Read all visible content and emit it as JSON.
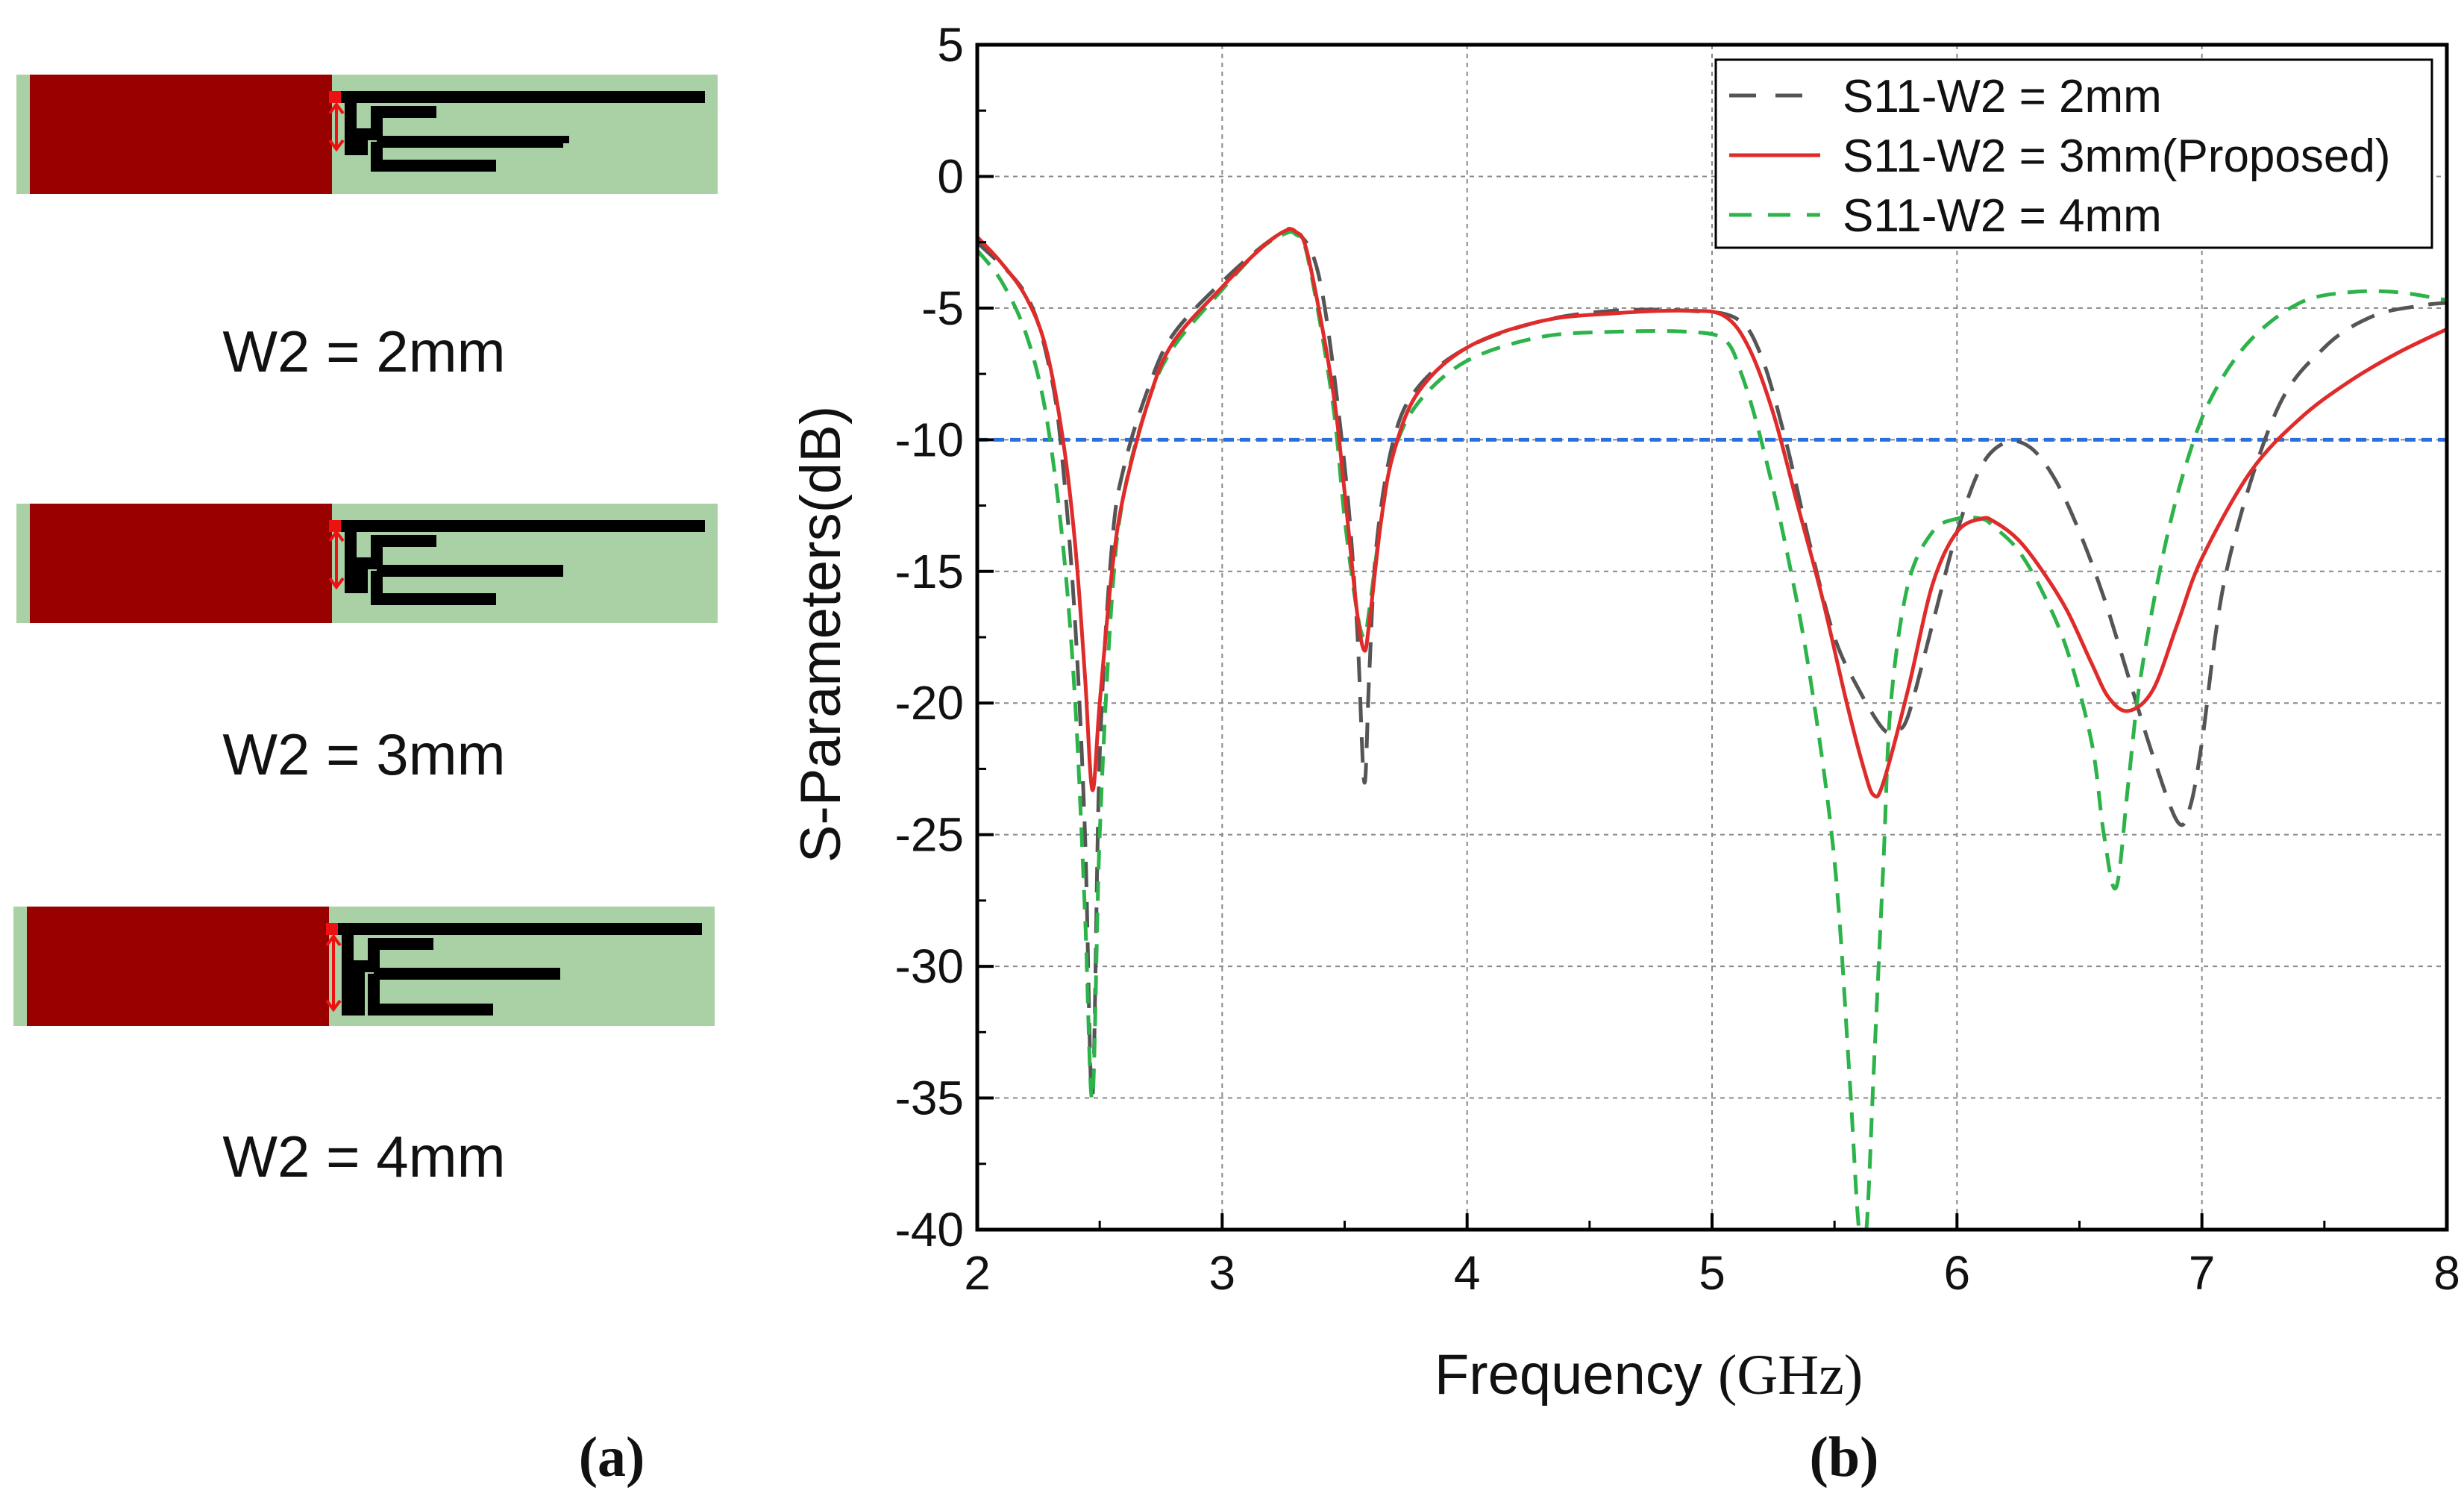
{
  "panel_a": {
    "captions": [
      "W2 = 2mm",
      "W2 = 3mm",
      "W2 = 4mm"
    ],
    "label": "(a)",
    "colors": {
      "patch": "#990000",
      "substrate": "#a9d1a5",
      "strip": "#000000",
      "feed": "#ee1111"
    }
  },
  "panel_b": {
    "label": "(b)"
  },
  "chart_data": {
    "type": "line",
    "xlabel_main": "Frequency ",
    "xlabel_unit": "(GHz)",
    "ylabel": "S-Parameters(dB)",
    "xlim": [
      2,
      8
    ],
    "ylim": [
      -40,
      5
    ],
    "xticks": [
      2,
      3,
      4,
      5,
      6,
      7,
      8
    ],
    "yticks": [
      5,
      0,
      -5,
      -10,
      -15,
      -20,
      -25,
      -30,
      -35,
      -40
    ],
    "grid": true,
    "legend_position": "top-right",
    "reference_line": {
      "y": -10,
      "color": "#2a6fdb",
      "style": "dashed"
    },
    "series": [
      {
        "name": "S11-W2 = 2mm",
        "color": "#555555",
        "dash": "long",
        "x": [
          2.0,
          2.2,
          2.3,
          2.35,
          2.4,
          2.44,
          2.47,
          2.5,
          2.55,
          2.6,
          2.7,
          2.8,
          3.0,
          3.2,
          3.3,
          3.4,
          3.5,
          3.55,
          3.58,
          3.6,
          3.63,
          3.7,
          3.8,
          4.0,
          4.3,
          4.6,
          4.9,
          5.1,
          5.2,
          5.3,
          5.4,
          5.5,
          5.6,
          5.7,
          5.75,
          5.8,
          5.9,
          6.0,
          6.1,
          6.2,
          6.3,
          6.4,
          6.5,
          6.6,
          6.7,
          6.8,
          6.9,
          6.95,
          7.0,
          7.1,
          7.3,
          7.5,
          7.7,
          7.9,
          8.0
        ],
        "y": [
          -2.5,
          -4.5,
          -7.5,
          -11,
          -17,
          -25,
          -35,
          -22,
          -14,
          -11,
          -8,
          -6,
          -4,
          -2.4,
          -2.1,
          -4,
          -11,
          -17,
          -23,
          -19,
          -14,
          -10,
          -8,
          -6.5,
          -5.5,
          -5.1,
          -5.1,
          -5.4,
          -6.8,
          -10,
          -14,
          -17.5,
          -19.5,
          -21,
          -21,
          -20.5,
          -17,
          -13.5,
          -11,
          -10.1,
          -10.3,
          -11.5,
          -13.5,
          -16,
          -19,
          -22,
          -24.5,
          -24,
          -21.5,
          -15,
          -9,
          -6.5,
          -5.3,
          -4.9,
          -4.8
        ]
      },
      {
        "name": "S11-W2 = 3mm(Proposed)",
        "color": "#e02b2b",
        "dash": "solid",
        "x": [
          2.0,
          2.1,
          2.2,
          2.28,
          2.35,
          2.4,
          2.44,
          2.47,
          2.5,
          2.55,
          2.6,
          2.7,
          2.8,
          3.0,
          3.15,
          3.25,
          3.3,
          3.35,
          3.45,
          3.5,
          3.55,
          3.58,
          3.6,
          3.65,
          3.7,
          3.8,
          4.0,
          4.3,
          4.6,
          4.9,
          5.05,
          5.15,
          5.25,
          5.35,
          5.45,
          5.55,
          5.62,
          5.66,
          5.7,
          5.8,
          5.9,
          6.0,
          6.1,
          6.15,
          6.25,
          6.35,
          6.45,
          6.55,
          6.62,
          6.7,
          6.8,
          6.9,
          7.0,
          7.2,
          7.4,
          7.6,
          7.8,
          8.0
        ],
        "y": [
          -2.3,
          -3.3,
          -4.6,
          -6.5,
          -10,
          -14,
          -19,
          -23.3,
          -20,
          -15,
          -12,
          -8.5,
          -6.3,
          -4.2,
          -2.8,
          -2.1,
          -2.1,
          -3,
          -8,
          -12,
          -16.5,
          -18,
          -17,
          -13,
          -10.5,
          -8.2,
          -6.5,
          -5.5,
          -5.2,
          -5.1,
          -5.3,
          -6.5,
          -9,
          -12.5,
          -16,
          -20,
          -22.5,
          -23.5,
          -23,
          -19.5,
          -15.5,
          -13.5,
          -13,
          -13.1,
          -13.8,
          -15,
          -16.5,
          -18.5,
          -19.8,
          -20.3,
          -19.5,
          -17,
          -14.5,
          -11.2,
          -9.2,
          -7.8,
          -6.7,
          -5.8
        ]
      },
      {
        "name": "S11-W2 = 4mm",
        "color": "#2cb34a",
        "dash": "short",
        "x": [
          2.0,
          2.1,
          2.2,
          2.28,
          2.35,
          2.4,
          2.44,
          2.47,
          2.5,
          2.55,
          2.6,
          2.7,
          2.8,
          3.0,
          3.15,
          3.25,
          3.3,
          3.35,
          3.45,
          3.5,
          3.55,
          3.58,
          3.6,
          3.65,
          3.7,
          3.8,
          4.0,
          4.3,
          4.6,
          4.9,
          5.05,
          5.12,
          5.2,
          5.3,
          5.4,
          5.5,
          5.56,
          5.6,
          5.63,
          5.66,
          5.7,
          5.73,
          5.8,
          5.9,
          6.0,
          6.1,
          6.15,
          6.25,
          6.35,
          6.45,
          6.55,
          6.6,
          6.65,
          6.7,
          6.75,
          6.85,
          6.95,
          7.05,
          7.2,
          7.4,
          7.6,
          7.8,
          8.0
        ],
        "y": [
          -2.8,
          -4,
          -6,
          -9,
          -14,
          -20,
          -28,
          -35,
          -25,
          -16,
          -12,
          -8.5,
          -6.5,
          -4.3,
          -2.8,
          -2.2,
          -2.2,
          -3.1,
          -8.5,
          -13,
          -16.5,
          -17.5,
          -16.5,
          -13,
          -10.5,
          -8.6,
          -7,
          -6.1,
          -5.9,
          -5.9,
          -6.2,
          -7.5,
          -10,
          -14,
          -19,
          -26,
          -34,
          -40,
          -40,
          -34,
          -26,
          -20,
          -15.5,
          -13.5,
          -13,
          -13,
          -13.3,
          -14.2,
          -15.8,
          -18,
          -21.5,
          -25,
          -27,
          -23,
          -19,
          -14,
          -10.5,
          -8.2,
          -6.2,
          -4.8,
          -4.4,
          -4.4,
          -4.7
        ]
      }
    ]
  }
}
